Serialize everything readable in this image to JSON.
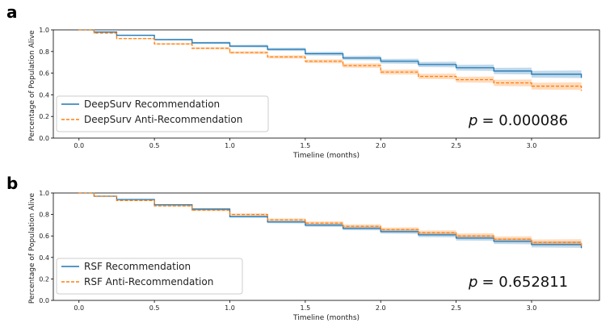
{
  "chart_data": [
    {
      "panel": "a",
      "type": "line",
      "xlabel": "Timeline (months)",
      "ylabel": "Percentage of Population Alive",
      "xlim": [
        -0.17,
        3.45
      ],
      "ylim": [
        0.0,
        1.0
      ],
      "xticks": [
        "0.0",
        "0.5",
        "1.0",
        "1.5",
        "2.0",
        "2.5",
        "3.0"
      ],
      "yticks": [
        "0.0",
        "0.2",
        "0.4",
        "0.6",
        "0.8",
        "1.0"
      ],
      "legend_position": "lower-left",
      "annotation_prefix": "p",
      "annotation_value": "= 0.000086",
      "series": [
        {
          "name": "DeepSurv Recommendation",
          "color": "#1f77b4",
          "style": "solid",
          "x": [
            0,
            0.1,
            0.25,
            0.5,
            0.75,
            1.0,
            1.25,
            1.5,
            1.75,
            2.0,
            2.25,
            2.5,
            2.75,
            3.0,
            3.33
          ],
          "y": [
            1.0,
            0.98,
            0.95,
            0.91,
            0.88,
            0.85,
            0.82,
            0.78,
            0.74,
            0.71,
            0.68,
            0.65,
            0.62,
            0.59,
            0.56
          ],
          "ci_width": 0.035
        },
        {
          "name": "DeepSurv Anti-Recommendation",
          "color": "#ff7f0e",
          "style": "dashed",
          "x": [
            0,
            0.1,
            0.25,
            0.5,
            0.75,
            1.0,
            1.25,
            1.5,
            1.75,
            2.0,
            2.25,
            2.5,
            2.75,
            3.0,
            3.33
          ],
          "y": [
            1.0,
            0.97,
            0.92,
            0.87,
            0.83,
            0.79,
            0.75,
            0.71,
            0.67,
            0.61,
            0.57,
            0.54,
            0.51,
            0.48,
            0.44
          ],
          "ci_width": 0.035
        }
      ]
    },
    {
      "panel": "b",
      "type": "line",
      "xlabel": "Timeline (months)",
      "ylabel": "Percentage of Population Alive",
      "xlim": [
        -0.17,
        3.45
      ],
      "ylim": [
        0.0,
        1.0
      ],
      "xticks": [
        "0.0",
        "0.5",
        "1.0",
        "1.5",
        "2.0",
        "2.5",
        "3.0"
      ],
      "yticks": [
        "0.0",
        "0.2",
        "0.4",
        "0.6",
        "0.8",
        "1.0"
      ],
      "legend_position": "lower-left",
      "annotation_prefix": "p",
      "annotation_value": "= 0.652811",
      "series": [
        {
          "name": "RSF Recommendation",
          "color": "#1f77b4",
          "style": "solid",
          "x": [
            0,
            0.1,
            0.25,
            0.5,
            0.75,
            1.0,
            1.25,
            1.5,
            1.75,
            2.0,
            2.25,
            2.5,
            2.75,
            3.0,
            3.33
          ],
          "y": [
            1.0,
            0.97,
            0.94,
            0.89,
            0.85,
            0.78,
            0.73,
            0.7,
            0.67,
            0.64,
            0.61,
            0.58,
            0.55,
            0.52,
            0.49
          ],
          "ci_width": 0.03
        },
        {
          "name": "RSF Anti-Recommendation",
          "color": "#ff7f0e",
          "style": "dashed",
          "x": [
            0,
            0.1,
            0.25,
            0.5,
            0.75,
            1.0,
            1.25,
            1.5,
            1.75,
            2.0,
            2.25,
            2.5,
            2.75,
            3.0,
            3.33
          ],
          "y": [
            1.0,
            0.97,
            0.93,
            0.88,
            0.84,
            0.8,
            0.75,
            0.72,
            0.69,
            0.66,
            0.63,
            0.6,
            0.57,
            0.54,
            0.51
          ],
          "ci_width": 0.03
        }
      ]
    }
  ]
}
